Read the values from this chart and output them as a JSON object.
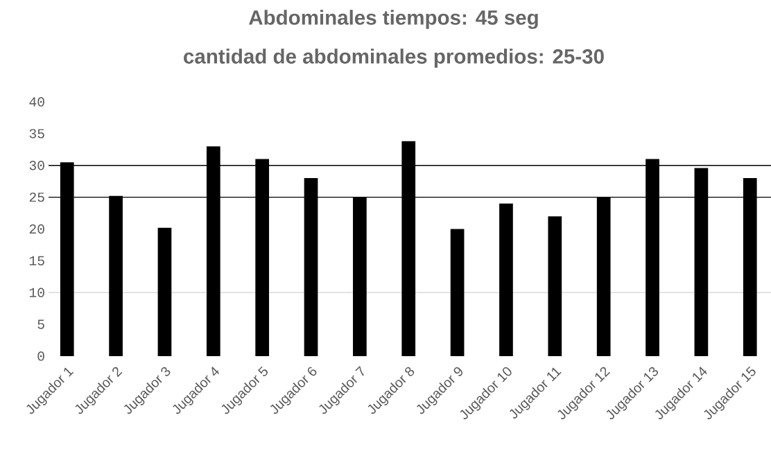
{
  "chart_data": {
    "type": "bar",
    "title": "Abdominales tiempos: 45 seg",
    "subtitle": "cantidad de abdominales promedios: 25-30",
    "categories": [
      "Jugador 1",
      "Jugador 2",
      "Jugador 3",
      "Jugador 4",
      "Jugador 5",
      "Jugador 6",
      "Jugador 7",
      "Jugador 8",
      "Jugador 9",
      "Jugador 10",
      "Jugador 11",
      "Jugador 12",
      "Jugador 13",
      "Jugador 14",
      "Jugador 15"
    ],
    "values": [
      30.5,
      25.2,
      20.2,
      33,
      31,
      28,
      25,
      33.8,
      20,
      24,
      22,
      25,
      31,
      29.6,
      28
    ],
    "color": "#000000",
    "ylim": [
      0,
      40
    ],
    "yticks": [
      0,
      5,
      10,
      15,
      20,
      25,
      30,
      35,
      40
    ],
    "ref_lines": [
      {
        "axis": "y",
        "value": 30,
        "color": "#000000"
      },
      {
        "axis": "y",
        "value": 25,
        "color": "#000000"
      },
      {
        "axis": "y",
        "value": 10,
        "color": "#d9d9d9"
      }
    ]
  }
}
